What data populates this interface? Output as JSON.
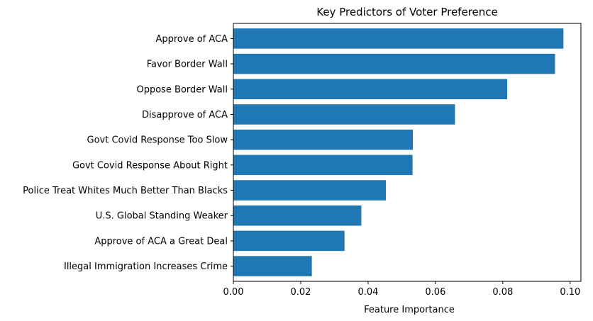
{
  "chart_data": {
    "type": "bar",
    "orientation": "horizontal",
    "title": "Key Predictors of Voter Preference",
    "xlabel": "Feature Importance",
    "ylabel": "",
    "categories": [
      "Approve of ACA",
      "Favor Border Wall",
      "Oppose Border Wall",
      "Disapprove of ACA",
      "Govt Covid Response Too Slow",
      "Govt Covid Response About Right",
      "Police Treat Whites Much Better Than Blacks",
      "U.S. Global Standing Weaker",
      "Approve of ACA a Great Deal",
      "Illegal Immigration Increases Crime"
    ],
    "values": [
      0.098,
      0.0955,
      0.0813,
      0.0658,
      0.0533,
      0.0532,
      0.0453,
      0.038,
      0.033,
      0.0233
    ],
    "xlim": [
      0,
      0.1032
    ],
    "xticks": [
      "0.00",
      "0.02",
      "0.04",
      "0.06",
      "0.08",
      "0.10"
    ],
    "xtick_values": [
      0,
      0.02,
      0.04,
      0.06,
      0.08,
      0.1
    ],
    "grid": false,
    "legend": "none",
    "bar_color": "#1f77b4"
  }
}
